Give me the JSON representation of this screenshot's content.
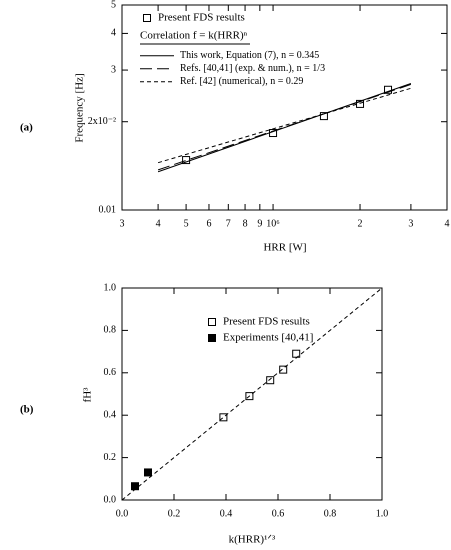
{
  "chart_data": [
    {
      "type": "scatter",
      "panel": "(a)",
      "xlabel": "HRR [W]",
      "ylabel": "Frequency [Hz]",
      "log_x": true,
      "log_y": true,
      "xlim": [
        300000,
        4000000
      ],
      "xticks": [
        {
          "value": 300000,
          "label": "3"
        },
        {
          "value": 400000,
          "label": "4"
        },
        {
          "value": 500000,
          "label": "5"
        },
        {
          "value": 600000,
          "label": "6"
        },
        {
          "value": 700000,
          "label": "7"
        },
        {
          "value": 800000,
          "label": "8"
        },
        {
          "value": 900000,
          "label": "9"
        },
        {
          "value": 1000000,
          "label": "10⁶"
        },
        {
          "value": 2000000,
          "label": "2"
        },
        {
          "value": 3000000,
          "label": "3"
        },
        {
          "value": 4000000,
          "label": "4"
        }
      ],
      "ylim": [
        0.01,
        0.05
      ],
      "yticks": [
        0.01,
        {
          "value": 0.02,
          "label": "2x10⁻²"
        },
        {
          "value": 0.03,
          "label": "3"
        },
        {
          "value": 0.04,
          "label": "4"
        },
        {
          "value": 0.05,
          "label": "5"
        }
      ],
      "legend_title": "Correlation f = k(HRR)ⁿ",
      "series": [
        {
          "name": "Present FDS results",
          "marker": "open-square",
          "color": "#000000",
          "x": [
            500000,
            1000000,
            1500000,
            2000000,
            2500000
          ],
          "values": [
            0.0148,
            0.0183,
            0.0209,
            0.023,
            0.0257
          ]
        },
        {
          "name": "This work, Equation (7), n = 0.345",
          "dash": "solid",
          "color": "#000000",
          "x": [
            400000,
            3000000
          ],
          "values": [
            0.0135,
            0.027
          ]
        },
        {
          "name": "Refs. [40,41] (exp. & num.), n = 1/3",
          "dash": "long",
          "color": "#000000",
          "x": [
            400000,
            3000000
          ],
          "values": [
            0.0137,
            0.0268
          ]
        },
        {
          "name": "Ref. [42] (numerical), n = 0.29",
          "dash": "short",
          "color": "#000000",
          "x": [
            400000,
            3000000
          ],
          "values": [
            0.0145,
            0.026
          ]
        }
      ]
    },
    {
      "type": "scatter",
      "panel": "(b)",
      "xlabel": "k(HRR)¹ᐟ³",
      "ylabel": "fH³",
      "log_x": false,
      "log_y": false,
      "xlim": [
        0,
        1
      ],
      "xticks": [
        {
          "value": 0,
          "label": "0.0"
        },
        0.2,
        0.4,
        0.6,
        0.8,
        {
          "value": 1,
          "label": "1.0"
        }
      ],
      "ylim": [
        0,
        1
      ],
      "yticks": [
        {
          "value": 0,
          "label": "0.0"
        },
        0.2,
        0.4,
        0.6,
        0.8,
        {
          "value": 1,
          "label": "1.0"
        }
      ],
      "series": [
        {
          "name": "Present FDS results",
          "marker": "open-square",
          "color": "#000000",
          "x": [
            0.39,
            0.49,
            0.57,
            0.62,
            0.67
          ],
          "values": [
            0.39,
            0.49,
            0.565,
            0.615,
            0.69
          ]
        },
        {
          "name": "Experiments [40,41]",
          "marker": "filled-square",
          "color": "#000000",
          "x": [
            0.05,
            0.1
          ],
          "values": [
            0.065,
            0.13
          ]
        },
        {
          "dash": "short",
          "color": "#000000",
          "x": [
            0,
            1
          ],
          "values": [
            0,
            1
          ]
        }
      ]
    }
  ]
}
